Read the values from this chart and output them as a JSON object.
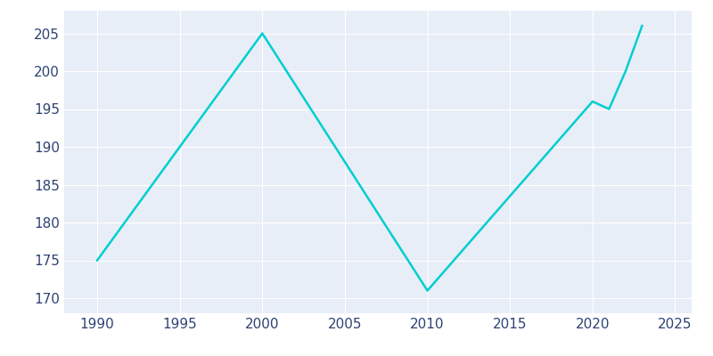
{
  "x_values": [
    1990,
    2000,
    2010,
    2020,
    2021,
    2022,
    2023
  ],
  "population": [
    175,
    205,
    171,
    196,
    195,
    200,
    206
  ],
  "line_color": "#00CED1",
  "bg_color": "#E8EEF7",
  "outer_bg": "#ffffff",
  "grid_color": "#ffffff",
  "tick_color": "#2E4272",
  "xlim": [
    1988,
    2026
  ],
  "ylim": [
    168,
    208
  ],
  "xticks": [
    1990,
    1995,
    2000,
    2005,
    2010,
    2015,
    2020,
    2025
  ],
  "yticks": [
    170,
    175,
    180,
    185,
    190,
    195,
    200,
    205
  ],
  "linewidth": 1.8,
  "tick_fontsize": 11
}
